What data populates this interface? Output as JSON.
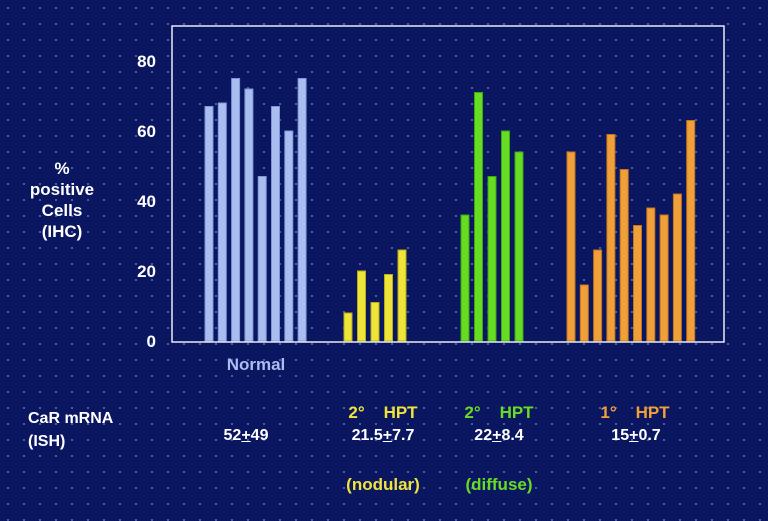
{
  "chart_data": {
    "type": "bar",
    "ylim": [
      0,
      90
    ],
    "yticks": [
      0,
      20,
      40,
      60,
      80
    ],
    "ylabel_lines": [
      "%",
      "positive",
      "Cells",
      "(IHC)"
    ],
    "colors": {
      "Normal": "#a9bdf0",
      "2° HPT (nodular)": "#eee43a",
      "2° HPT (diffuse)": "#66dd22",
      "1° HPT": "#f0a03a"
    },
    "groups": [
      {
        "name": "Normal",
        "label_lines": [
          "Normal"
        ],
        "label_color": "#a9bdf0",
        "values": [
          67,
          68,
          75,
          72,
          47,
          67,
          60,
          75
        ]
      },
      {
        "name": "2° HPT (nodular)",
        "label_lines": [
          "2°    HPT",
          "(nodular)"
        ],
        "label_color": "#eee43a",
        "values": [
          8,
          20,
          11,
          19,
          26
        ]
      },
      {
        "name": "2° HPT (diffuse)",
        "label_lines": [
          "2°    HPT",
          "(diffuse)"
        ],
        "label_color": "#66dd22",
        "values": [
          36,
          71,
          47,
          60,
          54
        ]
      },
      {
        "name": "1° HPT",
        "label_lines": [
          "1°    HPT"
        ],
        "label_color": "#f0a03a",
        "values": [
          54,
          16,
          26,
          59,
          49,
          33,
          38,
          36,
          42,
          63
        ]
      }
    ]
  },
  "mrna": {
    "label_lines": [
      "CaR mRNA",
      "(ISH)"
    ],
    "values": [
      {
        "main": "52",
        "pm": "+",
        "dev": "49"
      },
      {
        "main": "21.5",
        "pm": "+",
        "dev": "7.7"
      },
      {
        "main": "22",
        "pm": "+",
        "dev": "8.4"
      },
      {
        "main": "15",
        "pm": "+",
        "dev": "0.7"
      }
    ]
  }
}
